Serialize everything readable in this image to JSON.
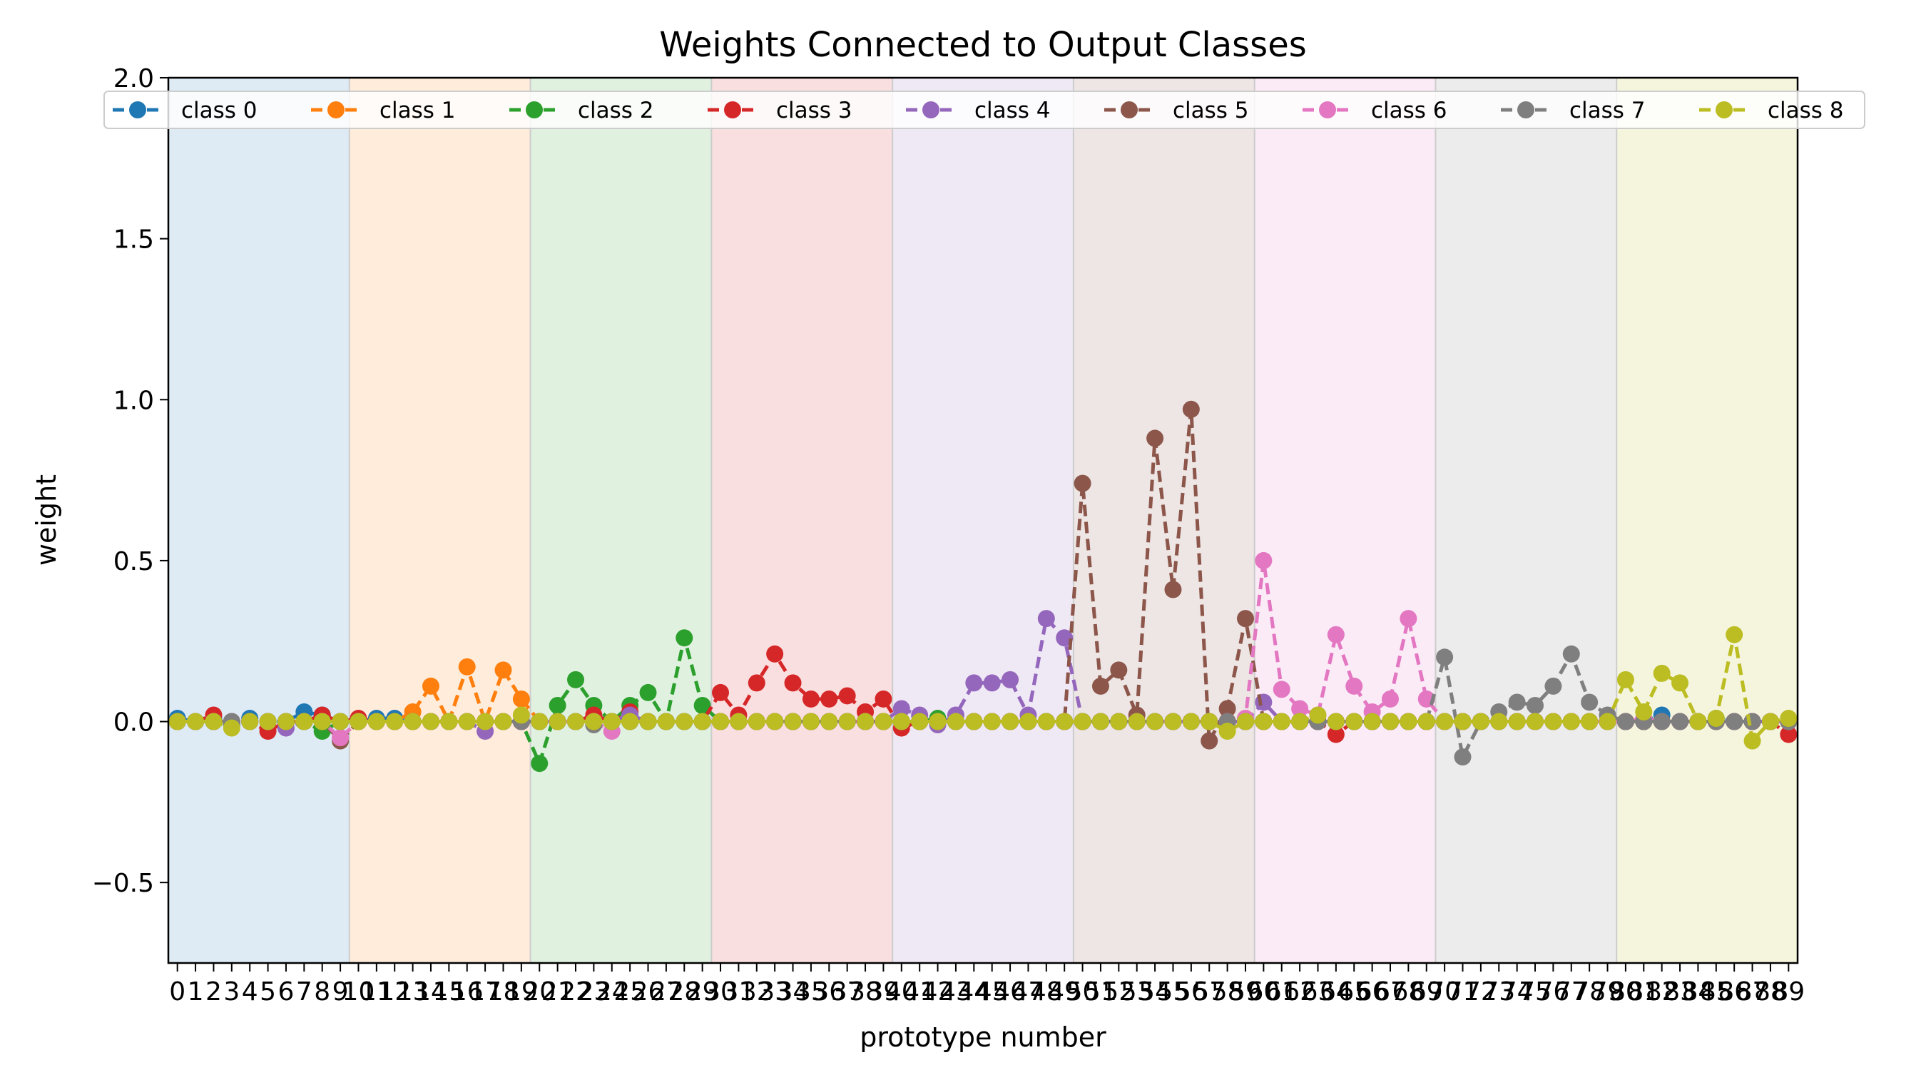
{
  "chart_data": {
    "type": "line",
    "title": "Weights Connected to Output Classes",
    "xlabel": "prototype number",
    "ylabel": "weight",
    "xlim": [
      -0.5,
      89.5
    ],
    "ylim": [
      -0.75,
      2.0
    ],
    "y_ticks": [
      "−0.5",
      "0.0",
      "0.5",
      "1.0",
      "1.5",
      "2.0"
    ],
    "y_tick_values": [
      -0.5,
      0.0,
      0.5,
      1.0,
      1.5,
      2.0
    ],
    "x_tick_labels": [
      "0",
      "1",
      "2",
      "3",
      "4",
      "5",
      "6",
      "7",
      "8",
      "9",
      "10",
      "11",
      "12",
      "13",
      "14",
      "15",
      "16",
      "17",
      "18",
      "19",
      "20",
      "21",
      "22",
      "23",
      "24",
      "25",
      "26",
      "27",
      "28",
      "29",
      "30",
      "31",
      "32",
      "33",
      "34",
      "35",
      "36",
      "37",
      "38",
      "39",
      "40",
      "41",
      "42",
      "43",
      "44",
      "45",
      "46",
      "47",
      "48",
      "49",
      "50",
      "51",
      "52",
      "53",
      "54",
      "55",
      "56",
      "57",
      "58",
      "59",
      "60",
      "61",
      "62",
      "63",
      "64",
      "65",
      "66",
      "67",
      "68",
      "69",
      "70",
      "71",
      "72",
      "73",
      "74",
      "75",
      "76",
      "77",
      "78",
      "79",
      "80",
      "81",
      "82",
      "83",
      "84",
      "85",
      "86",
      "87",
      "88",
      "89"
    ],
    "grid": false,
    "legend_placement": "top, one row",
    "class_bands": [
      {
        "class": 0,
        "x_range": [
          0,
          9
        ],
        "color": "#1f77b4"
      },
      {
        "class": 1,
        "x_range": [
          10,
          19
        ],
        "color": "#ff7f0e"
      },
      {
        "class": 2,
        "x_range": [
          20,
          29
        ],
        "color": "#2ca02c"
      },
      {
        "class": 3,
        "x_range": [
          30,
          39
        ],
        "color": "#d62728"
      },
      {
        "class": 4,
        "x_range": [
          40,
          49
        ],
        "color": "#9467bd"
      },
      {
        "class": 5,
        "x_range": [
          50,
          59
        ],
        "color": "#8c564b"
      },
      {
        "class": 6,
        "x_range": [
          60,
          69
        ],
        "color": "#e377c2"
      },
      {
        "class": 7,
        "x_range": [
          70,
          79
        ],
        "color": "#7f7f7f"
      },
      {
        "class": 8,
        "x_range": [
          80,
          89
        ],
        "color": "#bcbd22"
      }
    ],
    "series": [
      {
        "name": "class 0",
        "color": "#1f77b4",
        "values": [
          0.01,
          0,
          0.01,
          -0.01,
          0.01,
          0,
          0,
          0.03,
          0.02,
          0,
          0,
          0.01,
          0.01,
          0,
          0,
          0,
          0,
          0,
          0,
          0,
          0,
          0,
          0,
          0,
          0,
          0,
          0,
          0,
          0,
          0,
          0,
          0,
          0,
          0,
          0,
          0,
          0,
          0,
          0,
          0,
          0,
          0,
          0,
          0,
          0,
          0,
          0,
          0,
          0,
          0,
          0,
          0,
          0,
          0,
          0,
          0,
          0,
          0,
          0,
          0,
          0,
          0,
          0,
          0,
          0,
          0,
          0,
          0,
          0,
          0,
          0,
          0,
          0,
          0,
          0,
          0,
          0,
          0,
          0,
          0,
          0,
          0,
          0.02,
          0,
          0,
          0.01,
          0,
          0,
          0,
          0
        ]
      },
      {
        "name": "class 1",
        "color": "#ff7f0e",
        "values": [
          0,
          0,
          0,
          0,
          0,
          0,
          0,
          0,
          0,
          0,
          0,
          0,
          0,
          0.03,
          0.11,
          0,
          0.17,
          0,
          0.16,
          0.07,
          0,
          0,
          0,
          0,
          0,
          0,
          0,
          0,
          0,
          0,
          0,
          0,
          0,
          0,
          0,
          0,
          0,
          0,
          0,
          0,
          0,
          0,
          0,
          0,
          0,
          0,
          0,
          0,
          0,
          0,
          0,
          0,
          0,
          0,
          0,
          0,
          0,
          0,
          0,
          0,
          0,
          0,
          0,
          0,
          0,
          0,
          0,
          0,
          0,
          0,
          0,
          0,
          0,
          0,
          0,
          0,
          0,
          0,
          0,
          0,
          0,
          0,
          0,
          0,
          0,
          0,
          0,
          0,
          0,
          0
        ]
      },
      {
        "name": "class 2",
        "color": "#2ca02c",
        "values": [
          0,
          0,
          0,
          0,
          0,
          0,
          0,
          0,
          -0.03,
          0,
          0,
          0,
          0,
          0,
          0,
          0,
          0,
          0,
          0,
          0,
          -0.13,
          0.05,
          0.13,
          0.05,
          0,
          0.05,
          0.09,
          0,
          0.26,
          0.05,
          0,
          0,
          0,
          0,
          0,
          0,
          0,
          0,
          0,
          0,
          0,
          0,
          0.01,
          0,
          0,
          0,
          0,
          0,
          0,
          0,
          0,
          0,
          0,
          0,
          0,
          0,
          0,
          0,
          0,
          0,
          0,
          0,
          0,
          0,
          0,
          0,
          0,
          0,
          0,
          0,
          0,
          0,
          0,
          0,
          0,
          0,
          0,
          0,
          0,
          0,
          0,
          0,
          0,
          0,
          0,
          0,
          0,
          0,
          0,
          0
        ]
      },
      {
        "name": "class 3",
        "color": "#d62728",
        "values": [
          0,
          0,
          0.02,
          0,
          0,
          -0.03,
          0,
          0,
          0.02,
          0,
          0.01,
          0,
          0,
          0,
          0,
          0,
          0,
          0,
          0,
          0,
          0,
          0,
          0,
          0.02,
          0,
          0.03,
          0,
          0,
          0,
          0,
          0.09,
          0.02,
          0.12,
          0.21,
          0.12,
          0.07,
          0.07,
          0.08,
          0.03,
          0.07,
          -0.02,
          0,
          0,
          0,
          0,
          0,
          0,
          0,
          0,
          0,
          0,
          0,
          0,
          0,
          0,
          0,
          0,
          0,
          0,
          0,
          0,
          0,
          0,
          0,
          -0.04,
          0,
          0,
          0,
          0,
          0,
          0,
          0,
          0,
          0,
          0,
          0,
          0,
          0,
          0,
          0,
          0,
          0,
          0,
          0,
          0,
          0,
          0,
          0,
          0,
          -0.04
        ]
      },
      {
        "name": "class 4",
        "color": "#9467bd",
        "values": [
          0,
          0,
          0,
          0,
          0,
          0,
          -0.02,
          0,
          0,
          0,
          0,
          0,
          0,
          0,
          0,
          0,
          0,
          -0.03,
          0,
          0,
          0,
          0,
          0,
          0,
          0,
          0.02,
          0,
          0,
          0,
          0,
          0,
          0,
          0,
          0,
          0,
          0,
          0,
          0,
          0,
          0,
          0.04,
          0.02,
          -0.01,
          0.02,
          0.12,
          0.12,
          0.13,
          0.02,
          0.32,
          0.26,
          0,
          0,
          0,
          0,
          0,
          0,
          0,
          0,
          0,
          0,
          0.06,
          0,
          0,
          0,
          0,
          0,
          0,
          0,
          0,
          0,
          0,
          0,
          0,
          0,
          0,
          0,
          0,
          0,
          0,
          0,
          0,
          0,
          0,
          0,
          0,
          0,
          0,
          0,
          0,
          0
        ]
      },
      {
        "name": "class 5",
        "color": "#8c564b",
        "values": [
          0,
          0,
          0,
          0,
          0,
          0,
          0,
          0,
          0,
          -0.06,
          0,
          0,
          0,
          0,
          0,
          0,
          0,
          0,
          0,
          0,
          0,
          0,
          0,
          0,
          0,
          0,
          0,
          0,
          0,
          0,
          0,
          0,
          0,
          0,
          0,
          0,
          0,
          0,
          0,
          0,
          0,
          0,
          0,
          0,
          0,
          0,
          0,
          0,
          0,
          0,
          0.74,
          0.11,
          0.16,
          0.02,
          0.88,
          0.41,
          0.97,
          -0.06,
          0.04,
          0.32,
          0,
          0,
          0,
          0,
          0,
          0,
          0,
          0,
          0,
          0,
          0,
          0,
          0,
          0,
          0,
          0,
          0,
          0,
          0,
          0,
          0,
          0,
          0,
          0,
          0,
          0,
          0,
          0,
          0,
          0
        ]
      },
      {
        "name": "class 6",
        "color": "#e377c2",
        "values": [
          0,
          0,
          0,
          0,
          0,
          0,
          0,
          0,
          0,
          -0.05,
          0,
          0,
          0,
          0,
          0,
          0,
          0,
          0,
          0,
          0,
          0,
          0,
          0,
          0,
          -0.03,
          0,
          0,
          0,
          0,
          0,
          0,
          0,
          0,
          0,
          0,
          0,
          0,
          0,
          0,
          0,
          0,
          0,
          0,
          0,
          0,
          0,
          0,
          0,
          0,
          0,
          0,
          0,
          0,
          0,
          0,
          0,
          0,
          0,
          0,
          0.01,
          0.5,
          0.1,
          0.04,
          0.02,
          0.27,
          0.11,
          0.03,
          0.07,
          0.32,
          0.07,
          0,
          0,
          0,
          0,
          0,
          0,
          0,
          0,
          0,
          0,
          0,
          0.01,
          0,
          0,
          0,
          0,
          0,
          0,
          0,
          0
        ]
      },
      {
        "name": "class 7",
        "color": "#7f7f7f",
        "values": [
          0,
          0,
          0,
          0,
          0,
          0,
          0,
          0,
          0,
          0,
          0,
          0,
          0,
          0,
          0,
          0,
          0,
          0,
          0,
          0,
          0,
          0,
          0,
          -0.01,
          0,
          0,
          0,
          0,
          0,
          0,
          0,
          0,
          0,
          0,
          0,
          0,
          0,
          0,
          0,
          0,
          0,
          0,
          0,
          0,
          0,
          0,
          0,
          0,
          0,
          0,
          0,
          0,
          0,
          0,
          0,
          0,
          0,
          0,
          0,
          0,
          0,
          0,
          0,
          0,
          0,
          0,
          0,
          0,
          0,
          0,
          0.2,
          -0.11,
          0,
          0.03,
          0.06,
          0.05,
          0.11,
          0.21,
          0.06,
          0.02,
          0,
          0,
          0,
          0,
          0,
          0,
          0,
          0,
          0,
          0
        ]
      },
      {
        "name": "class 8",
        "color": "#bcbd22",
        "values": [
          0,
          0,
          0,
          -0.02,
          0,
          0,
          0,
          0,
          0,
          0,
          0,
          0,
          0,
          0,
          0,
          0,
          0,
          0,
          0,
          0.02,
          0,
          0,
          0,
          0,
          0,
          0,
          0,
          0,
          0,
          0,
          0,
          0,
          0,
          0,
          0,
          0,
          0,
          0,
          0,
          0,
          0,
          0,
          0,
          0,
          0,
          0,
          0,
          0,
          0,
          0,
          0,
          0,
          0,
          0,
          0,
          0,
          0,
          0,
          -0.03,
          0,
          0,
          0,
          0,
          0.02,
          0,
          0,
          0,
          0,
          0,
          0,
          0,
          0,
          0,
          0,
          0,
          0,
          0,
          0,
          0,
          0,
          0.13,
          0.03,
          0.15,
          0.12,
          0,
          0.01,
          0.27,
          -0.06,
          0,
          0.01
        ]
      }
    ]
  }
}
